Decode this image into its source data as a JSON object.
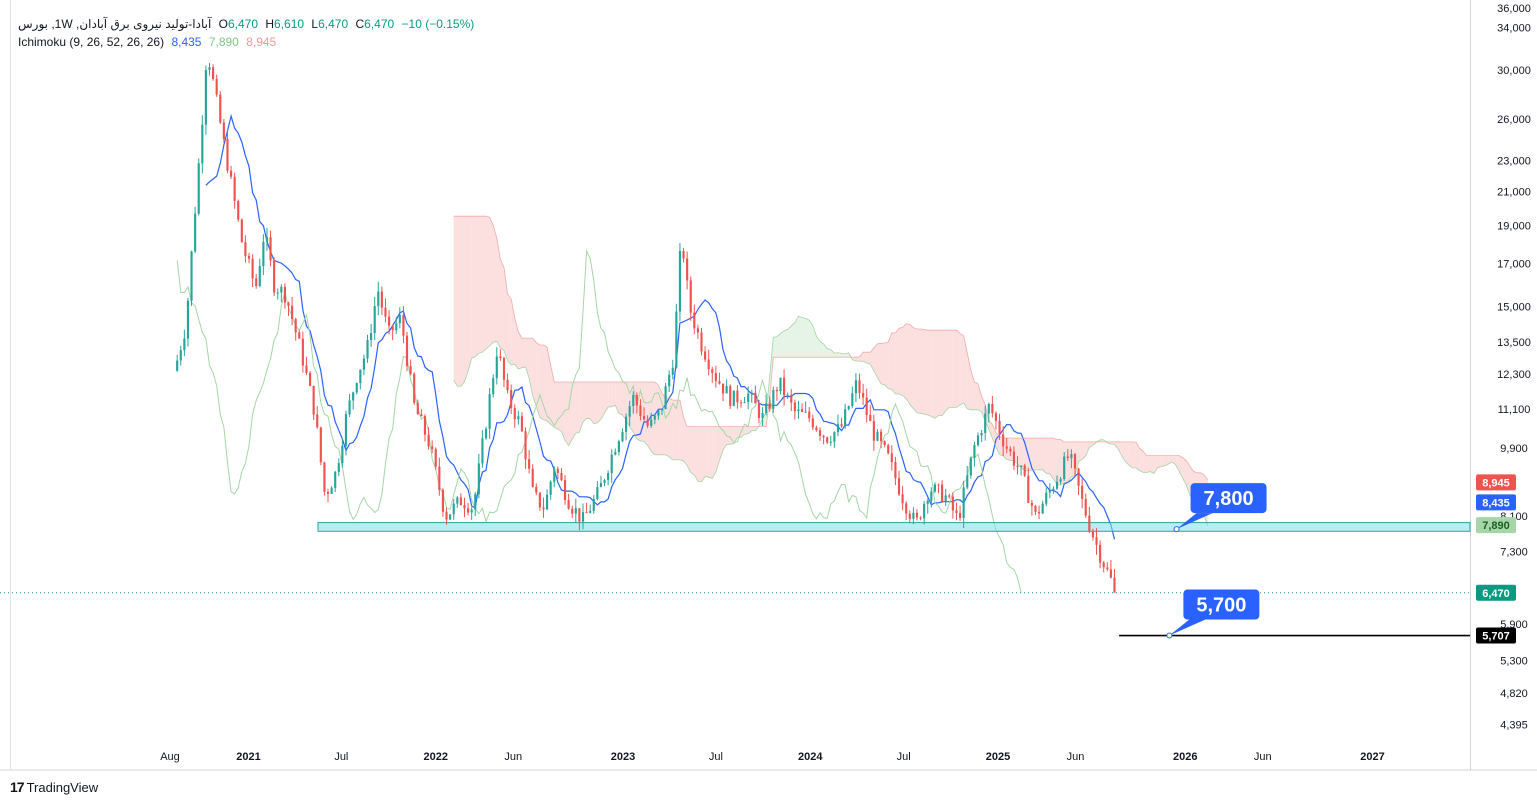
{
  "legend": {
    "symbol": "آبادا-تولید نیروی برق آبادان, 1W, بورس",
    "o_label": "O",
    "o": "6,470",
    "h_label": "H",
    "h": "6,610",
    "l_label": "L",
    "l": "6,470",
    "c_label": "C",
    "c": "6,470",
    "change": "−10 (−0.15%)",
    "indicator": "Ichimoku (9, 26, 52, 26, 26)",
    "ind_v1": "8,435",
    "ind_v2": "7,890",
    "ind_v3": "8,945"
  },
  "branding": {
    "logo_mark": "17",
    "logo_text": "TradingView"
  },
  "colors": {
    "up": "#26a69a",
    "down": "#ef5350",
    "conversion": "#2962ff",
    "lagging": "#a5d6a7",
    "cloud_bear": "#f8bbbb",
    "cloud_bull": "#c8e6c9",
    "support_fill": "#80deea",
    "support_stroke": "#26a69a",
    "label_blue": "#2962ff",
    "price_green": "#089981"
  },
  "chart_data": {
    "type": "candlestick",
    "title": "آبادا-تولید نیروی برق آبادان, 1W, بورس",
    "y_scale": "log",
    "ylim": [
      4200,
      36000
    ],
    "y_ticks": [
      {
        "v": 36000,
        "t": "36,000"
      },
      {
        "v": 34000,
        "t": "34,000"
      },
      {
        "v": 30000,
        "t": "30,000"
      },
      {
        "v": 26000,
        "t": "26,000"
      },
      {
        "v": 23000,
        "t": "23,000"
      },
      {
        "v": 21000,
        "t": "21,000"
      },
      {
        "v": 19000,
        "t": "19,000"
      },
      {
        "v": 17000,
        "t": "17,000"
      },
      {
        "v": 15000,
        "t": "15,000"
      },
      {
        "v": 13500,
        "t": "13,500"
      },
      {
        "v": 12300,
        "t": "12,300"
      },
      {
        "v": 11100,
        "t": "11,100"
      },
      {
        "v": 9900,
        "t": "9,900"
      },
      {
        "v": 8100,
        "t": "8,100"
      },
      {
        "v": 7300,
        "t": "7,300"
      },
      {
        "v": 5900,
        "t": "5,900"
      },
      {
        "v": 5300,
        "t": "5,300"
      },
      {
        "v": 4820,
        "t": "4,820"
      },
      {
        "v": 4395,
        "t": "4,395"
      }
    ],
    "x_range": [
      "2020-08-01",
      "2027-06-01"
    ],
    "x_ticks": [
      {
        "d": "2020-08-01",
        "t": "Aug",
        "bold": false
      },
      {
        "d": "2021-01-01",
        "t": "2021",
        "bold": true
      },
      {
        "d": "2021-07-01",
        "t": "Jul",
        "bold": false
      },
      {
        "d": "2022-01-01",
        "t": "2022",
        "bold": true
      },
      {
        "d": "2022-06-01",
        "t": "Jun",
        "bold": false
      },
      {
        "d": "2023-01-01",
        "t": "2023",
        "bold": true
      },
      {
        "d": "2023-07-01",
        "t": "Jul",
        "bold": false
      },
      {
        "d": "2024-01-01",
        "t": "2024",
        "bold": true
      },
      {
        "d": "2024-07-01",
        "t": "Jul",
        "bold": false
      },
      {
        "d": "2025-01-01",
        "t": "2025",
        "bold": true
      },
      {
        "d": "2025-06-01",
        "t": "Jun",
        "bold": false
      },
      {
        "d": "2026-01-01",
        "t": "2026",
        "bold": true
      },
      {
        "d": "2026-06-01",
        "t": "Jun",
        "bold": false
      },
      {
        "d": "2027-01-01",
        "t": "2027",
        "bold": true
      }
    ],
    "price_path": [
      [
        "2020-08-15",
        12800
      ],
      [
        "2020-09-01",
        14200
      ],
      [
        "2020-09-15",
        18500
      ],
      [
        "2020-10-01",
        25000
      ],
      [
        "2020-10-12",
        32000
      ],
      [
        "2020-10-20",
        30000
      ],
      [
        "2020-11-10",
        25000
      ],
      [
        "2020-12-01",
        21000
      ],
      [
        "2020-12-20",
        18000
      ],
      [
        "2021-01-15",
        15800
      ],
      [
        "2021-02-01",
        18700
      ],
      [
        "2021-02-20",
        16000
      ],
      [
        "2021-03-15",
        15500
      ],
      [
        "2021-04-15",
        13000
      ],
      [
        "2021-05-10",
        11000
      ],
      [
        "2021-05-30",
        8600
      ],
      [
        "2021-06-20",
        9200
      ],
      [
        "2021-07-10",
        10800
      ],
      [
        "2021-08-01",
        12300
      ],
      [
        "2021-08-20",
        13200
      ],
      [
        "2021-09-10",
        15800
      ],
      [
        "2021-10-01",
        13800
      ],
      [
        "2021-10-25",
        14500
      ],
      [
        "2021-11-20",
        11200
      ],
      [
        "2021-12-20",
        10000
      ],
      [
        "2022-01-20",
        8100
      ],
      [
        "2022-02-20",
        8500
      ],
      [
        "2022-03-15",
        8300
      ],
      [
        "2022-04-10",
        10800
      ],
      [
        "2022-05-01",
        13300
      ],
      [
        "2022-05-20",
        11500
      ],
      [
        "2022-06-15",
        10600
      ],
      [
        "2022-07-10",
        8600
      ],
      [
        "2022-08-01",
        8300
      ],
      [
        "2022-08-20",
        9400
      ],
      [
        "2022-09-20",
        8400
      ],
      [
        "2022-10-15",
        8000
      ],
      [
        "2022-11-15",
        8700
      ],
      [
        "2022-12-15",
        9900
      ],
      [
        "2023-01-20",
        11500
      ],
      [
        "2023-02-20",
        10500
      ],
      [
        "2023-03-15",
        11000
      ],
      [
        "2023-04-10",
        13000
      ],
      [
        "2023-04-25",
        18500
      ],
      [
        "2023-05-10",
        15000
      ],
      [
        "2023-06-01",
        13500
      ],
      [
        "2023-07-01",
        12200
      ],
      [
        "2023-08-01",
        11400
      ],
      [
        "2023-09-01",
        11600
      ],
      [
        "2023-10-01",
        10800
      ],
      [
        "2023-11-01",
        12000
      ],
      [
        "2023-12-01",
        11000
      ],
      [
        "2024-01-01",
        10800
      ],
      [
        "2024-02-01",
        10200
      ],
      [
        "2024-03-01",
        10500
      ],
      [
        "2024-04-01",
        12000
      ],
      [
        "2024-05-01",
        10400
      ],
      [
        "2024-06-01",
        9600
      ],
      [
        "2024-07-01",
        8500
      ],
      [
        "2024-07-25",
        7900
      ],
      [
        "2024-08-20",
        8800
      ],
      [
        "2024-09-20",
        8600
      ],
      [
        "2024-10-15",
        8000
      ],
      [
        "2024-11-15",
        9900
      ],
      [
        "2024-12-15",
        11200
      ],
      [
        "2025-01-15",
        10000
      ],
      [
        "2025-02-15",
        9200
      ],
      [
        "2025-03-15",
        8100
      ],
      [
        "2025-04-15",
        8800
      ],
      [
        "2025-05-20",
        9700
      ],
      [
        "2025-06-15",
        8400
      ],
      [
        "2025-07-10",
        7500
      ],
      [
        "2025-08-01",
        6900
      ],
      [
        "2025-08-20",
        6470
      ]
    ],
    "support_zone": [
      7750,
      7950
    ],
    "current_price": 6470,
    "labels": [
      {
        "text": "7,800",
        "price": 7800,
        "date": "2025-12-15"
      },
      {
        "text": "5,700",
        "price": 5707,
        "date": "2025-12-01"
      }
    ],
    "price_tags": [
      {
        "text": "8,945",
        "v": 8945,
        "color": "#ef5350"
      },
      {
        "text": "8,435",
        "v": 8435,
        "color": "#2962ff"
      },
      {
        "text": "7,890",
        "v": 7890,
        "color": "#a5d6a7"
      },
      {
        "text": "6,470",
        "v": 6470,
        "color": "#089981"
      },
      {
        "text": "5,707",
        "v": 5707,
        "color": "#000000"
      }
    ],
    "level_line": 5707
  }
}
